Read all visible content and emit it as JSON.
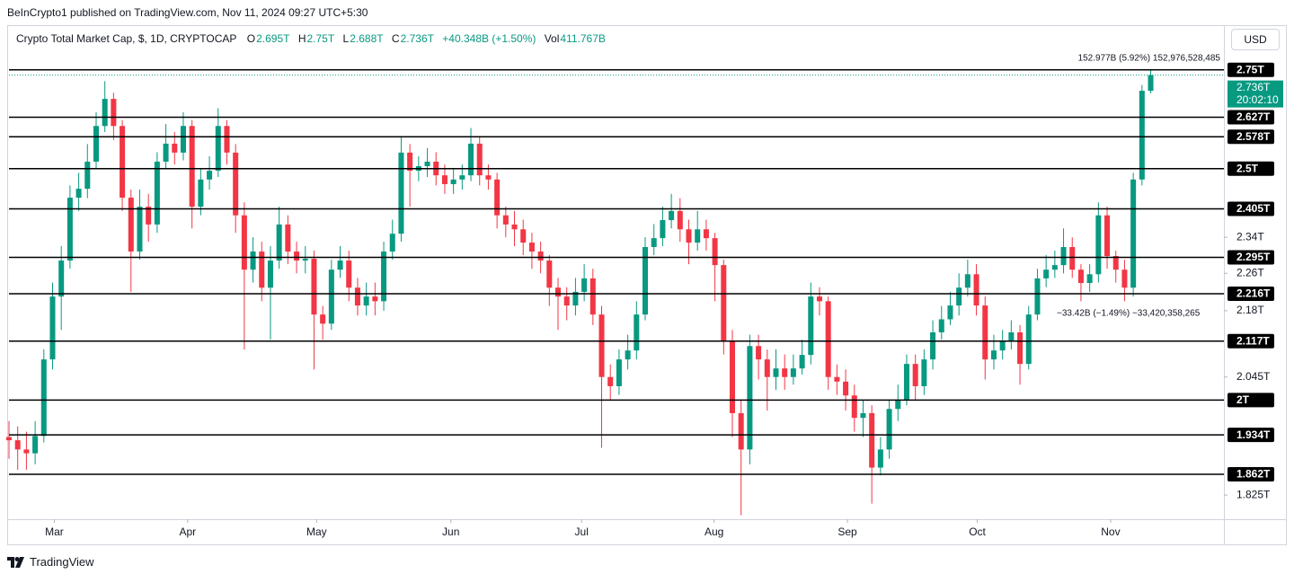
{
  "header": {
    "published": "BeInCrypto1 published on TradingView.com, Nov 11, 2024 09:27 UTC+5:30",
    "symbol": "Crypto Total Market Cap, $, 1D, CRYPTOCAP",
    "open_label": "O",
    "open": "2.695T",
    "high_label": "H",
    "high": "2.75T",
    "low_label": "L",
    "low": "2.688T",
    "close_label": "C",
    "close": "2.736T",
    "change": "+40.348B (+1.50%)",
    "volume_label": "Vol",
    "volume": "411.767B",
    "currency": "USD"
  },
  "footer": {
    "brand": "TradingView"
  },
  "chart_data": {
    "type": "candlestick",
    "log_scale": true,
    "up_color": "#089981",
    "down_color": "#f23645",
    "open": [
      1.93,
      1.924,
      1.907,
      1.9,
      1.932,
      2.08,
      2.21,
      2.288,
      2.431,
      2.452,
      2.517,
      2.605,
      2.674,
      2.605,
      2.431,
      2.308,
      2.41,
      2.369,
      2.517,
      2.561,
      2.539,
      2.605,
      2.41,
      2.474,
      2.495,
      2.605,
      2.539,
      2.39,
      2.268,
      2.308,
      2.229,
      2.288,
      2.369,
      2.308,
      2.288,
      2.292,
      2.172,
      2.153,
      2.268,
      2.288,
      2.229,
      2.191,
      2.21,
      2.2,
      2.308,
      2.348,
      2.539,
      2.495,
      2.506,
      2.517,
      2.484,
      2.463,
      2.474,
      2.484,
      2.561,
      2.484,
      2.474,
      2.39,
      2.369,
      2.358,
      2.328,
      2.308,
      2.288,
      2.229,
      2.21,
      2.191,
      2.22,
      2.249,
      2.172,
      2.045,
      2.027,
      2.08,
      2.098,
      2.172,
      2.318,
      2.338,
      2.379,
      2.4,
      2.358,
      2.328,
      2.358,
      2.338,
      2.278,
      2.117,
      1.975,
      1.907,
      2.107,
      2.08,
      2.045,
      2.062,
      2.045,
      2.062,
      2.089,
      2.21,
      2.2,
      2.045,
      2.036,
      2.009,
      1.966,
      1.975,
      1.874,
      1.907,
      1.983,
      2.0,
      2.071,
      2.027,
      2.08,
      2.135,
      2.162,
      2.191,
      2.229,
      2.258,
      2.191,
      2.08,
      2.098,
      2.117,
      2.135,
      2.071,
      2.172,
      2.249,
      2.268,
      2.278,
      2.318,
      2.268,
      2.239,
      2.258,
      2.39,
      2.298,
      2.268,
      2.229,
      2.474,
      2.695
    ],
    "high": [
      1.96,
      1.95,
      1.94,
      1.96,
      2.1,
      2.24,
      2.32,
      2.46,
      2.49,
      2.56,
      2.64,
      2.72,
      2.69,
      2.62,
      2.45,
      2.45,
      2.44,
      2.54,
      2.61,
      2.59,
      2.64,
      2.62,
      2.5,
      2.53,
      2.65,
      2.62,
      2.56,
      2.42,
      2.34,
      2.33,
      2.32,
      2.41,
      2.39,
      2.33,
      2.32,
      2.31,
      2.19,
      2.29,
      2.32,
      2.31,
      2.25,
      2.24,
      2.24,
      2.33,
      2.38,
      2.58,
      2.56,
      2.53,
      2.55,
      2.54,
      2.51,
      2.5,
      2.51,
      2.6,
      2.58,
      2.51,
      2.49,
      2.41,
      2.4,
      2.38,
      2.35,
      2.33,
      2.3,
      2.25,
      2.23,
      2.25,
      2.28,
      2.27,
      2.19,
      2.07,
      2.1,
      2.13,
      2.2,
      2.34,
      2.37,
      2.41,
      2.44,
      2.43,
      2.38,
      2.4,
      2.38,
      2.35,
      2.29,
      2.14,
      2.0,
      2.13,
      2.13,
      2.1,
      2.1,
      2.09,
      2.09,
      2.12,
      2.24,
      2.23,
      2.21,
      2.07,
      2.06,
      2.03,
      2.0,
      1.99,
      1.93,
      2.0,
      2.03,
      2.09,
      2.09,
      2.1,
      2.16,
      2.19,
      2.22,
      2.26,
      2.29,
      2.28,
      2.21,
      2.13,
      2.14,
      2.16,
      2.15,
      2.19,
      2.27,
      2.3,
      2.31,
      2.36,
      2.34,
      2.28,
      2.28,
      2.42,
      2.41,
      2.31,
      2.29,
      2.49,
      2.71,
      2.75
    ],
    "low": [
      1.89,
      1.87,
      1.87,
      1.88,
      1.92,
      2.06,
      2.14,
      2.27,
      2.4,
      2.43,
      2.5,
      2.59,
      2.57,
      2.4,
      2.22,
      2.29,
      2.33,
      2.35,
      2.5,
      2.51,
      2.52,
      2.36,
      2.39,
      2.45,
      2.48,
      2.51,
      2.35,
      2.1,
      2.24,
      2.2,
      2.12,
      2.27,
      2.28,
      2.26,
      2.26,
      2.06,
      2.12,
      2.14,
      2.25,
      2.2,
      2.17,
      2.17,
      2.17,
      2.18,
      2.29,
      2.33,
      2.41,
      2.47,
      2.48,
      2.46,
      2.44,
      2.44,
      2.45,
      2.47,
      2.46,
      2.45,
      2.36,
      2.34,
      2.32,
      2.3,
      2.27,
      2.26,
      2.19,
      2.14,
      2.16,
      2.17,
      2.2,
      2.15,
      1.91,
      2.0,
      2.01,
      2.06,
      2.08,
      2.16,
      2.3,
      2.32,
      2.36,
      2.33,
      2.28,
      2.31,
      2.31,
      2.2,
      2.09,
      1.93,
      1.79,
      1.88,
      2.04,
      1.98,
      2.02,
      2.02,
      2.03,
      2.05,
      2.07,
      2.17,
      2.02,
      2.01,
      1.98,
      1.94,
      1.93,
      1.81,
      1.86,
      1.89,
      1.96,
      1.99,
      2.0,
      2.01,
      2.06,
      2.12,
      2.15,
      2.17,
      2.21,
      2.17,
      2.04,
      2.06,
      2.08,
      2.1,
      2.03,
      2.06,
      2.16,
      2.23,
      2.25,
      2.26,
      2.25,
      2.2,
      2.22,
      2.24,
      2.27,
      2.24,
      2.2,
      2.21,
      2.46,
      2.688
    ],
    "close": [
      1.924,
      1.907,
      1.9,
      1.932,
      2.08,
      2.21,
      2.288,
      2.431,
      2.452,
      2.517,
      2.605,
      2.674,
      2.605,
      2.431,
      2.308,
      2.41,
      2.369,
      2.517,
      2.561,
      2.539,
      2.605,
      2.41,
      2.474,
      2.495,
      2.605,
      2.539,
      2.39,
      2.268,
      2.308,
      2.229,
      2.288,
      2.369,
      2.308,
      2.288,
      2.292,
      2.172,
      2.153,
      2.268,
      2.288,
      2.229,
      2.191,
      2.21,
      2.2,
      2.308,
      2.348,
      2.539,
      2.495,
      2.506,
      2.517,
      2.484,
      2.463,
      2.474,
      2.484,
      2.561,
      2.484,
      2.474,
      2.39,
      2.369,
      2.358,
      2.328,
      2.308,
      2.288,
      2.229,
      2.21,
      2.191,
      2.22,
      2.249,
      2.172,
      2.045,
      2.027,
      2.08,
      2.098,
      2.172,
      2.318,
      2.338,
      2.379,
      2.4,
      2.358,
      2.328,
      2.358,
      2.338,
      2.278,
      2.117,
      1.975,
      1.907,
      2.107,
      2.08,
      2.045,
      2.062,
      2.045,
      2.062,
      2.089,
      2.21,
      2.2,
      2.045,
      2.036,
      2.009,
      1.966,
      1.975,
      1.874,
      1.907,
      1.983,
      2.0,
      2.071,
      2.027,
      2.08,
      2.135,
      2.162,
      2.191,
      2.229,
      2.258,
      2.191,
      2.08,
      2.098,
      2.117,
      2.135,
      2.071,
      2.172,
      2.249,
      2.268,
      2.278,
      2.318,
      2.268,
      2.239,
      2.258,
      2.39,
      2.298,
      2.268,
      2.229,
      2.474,
      2.695,
      2.736
    ],
    "xlim": [
      0,
      139.4
    ],
    "xticks": [
      {
        "value": 5.2,
        "label": "Mar"
      },
      {
        "value": 20.5,
        "label": "Apr"
      },
      {
        "value": 35.3,
        "label": "May"
      },
      {
        "value": 50.7,
        "label": "Jun"
      },
      {
        "value": 65.7,
        "label": "Jul"
      },
      {
        "value": 80.9,
        "label": "Aug"
      },
      {
        "value": 96.2,
        "label": "Sep"
      },
      {
        "value": 111.1,
        "label": "Oct"
      },
      {
        "value": 126.4,
        "label": "Nov"
      }
    ],
    "ylim": [
      1.783,
      2.871
    ],
    "yticks": [
      {
        "value": 2.34,
        "label": "2.34T"
      },
      {
        "value": 2.26,
        "label": "2.26T"
      },
      {
        "value": 2.18,
        "label": "2.18T"
      },
      {
        "value": 2.045,
        "label": "2.045T"
      },
      {
        "value": 1.825,
        "label": "1.825T"
      }
    ],
    "levels": [
      {
        "value": 2.75,
        "label": "2.75T"
      },
      {
        "value": 2.627,
        "label": "2.627T"
      },
      {
        "value": 2.578,
        "label": "2.578T"
      },
      {
        "value": 2.5,
        "label": "2.5T"
      },
      {
        "value": 2.405,
        "label": "2.405T"
      },
      {
        "value": 2.295,
        "label": "2.295T"
      },
      {
        "value": 2.216,
        "label": "2.216T"
      },
      {
        "value": 2.117,
        "label": "2.117T"
      },
      {
        "value": 2,
        "label": "2T"
      },
      {
        "value": 1.934,
        "label": "1.934T"
      },
      {
        "value": 1.862,
        "label": "1.862T"
      }
    ],
    "current_price": {
      "value": 2.736,
      "label": "2.736T",
      "countdown": "20:02:10",
      "color": "#089981"
    },
    "annotations": [
      "152.977B (5.92%) 152,976,528,485",
      "−33.42B (−1.49%) −33,420,358,265"
    ]
  }
}
